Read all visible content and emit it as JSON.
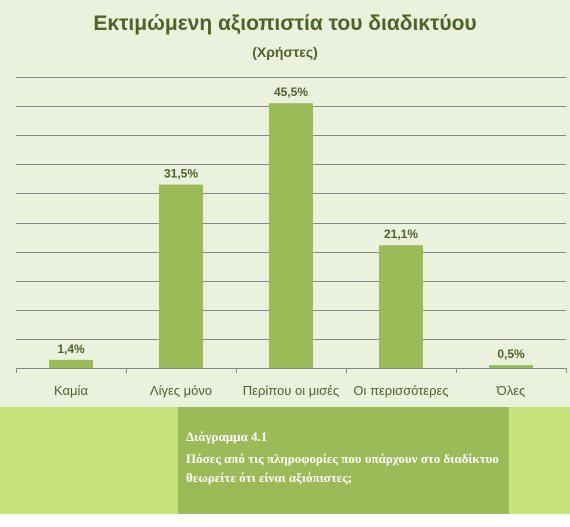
{
  "chart_data": {
    "type": "bar",
    "title": "Εκτιμώμενη αξιοπιστία του διαδικτύου",
    "subtitle": "(Χρήστες)",
    "categories": [
      "Καμία",
      "Λίγες μόνο",
      "Περίπου οι μισές",
      "Οι περισσότερες",
      "Όλες"
    ],
    "values": [
      1.4,
      31.5,
      45.5,
      21.1,
      0.5
    ],
    "value_labels": [
      "1,4%",
      "31,5%",
      "45,5%",
      "21,1%",
      "0,5%"
    ],
    "ylim": [
      0,
      50
    ],
    "grid": true,
    "legend": "none",
    "colors": {
      "bar": "#9bbb59",
      "plot_background": "#eaf1dd",
      "title": "#4f6228",
      "gridline": "#888888"
    }
  },
  "caption": {
    "heading": "Διάγραμμα 4.1",
    "text": "Πόσες από τις πληροφορίες που υπάρχουν στο διαδίκτυο θεωρείτε ότι είναι αξιόπιστες;",
    "band_color": "#c6e27a",
    "box_color": "#9bbb59"
  }
}
